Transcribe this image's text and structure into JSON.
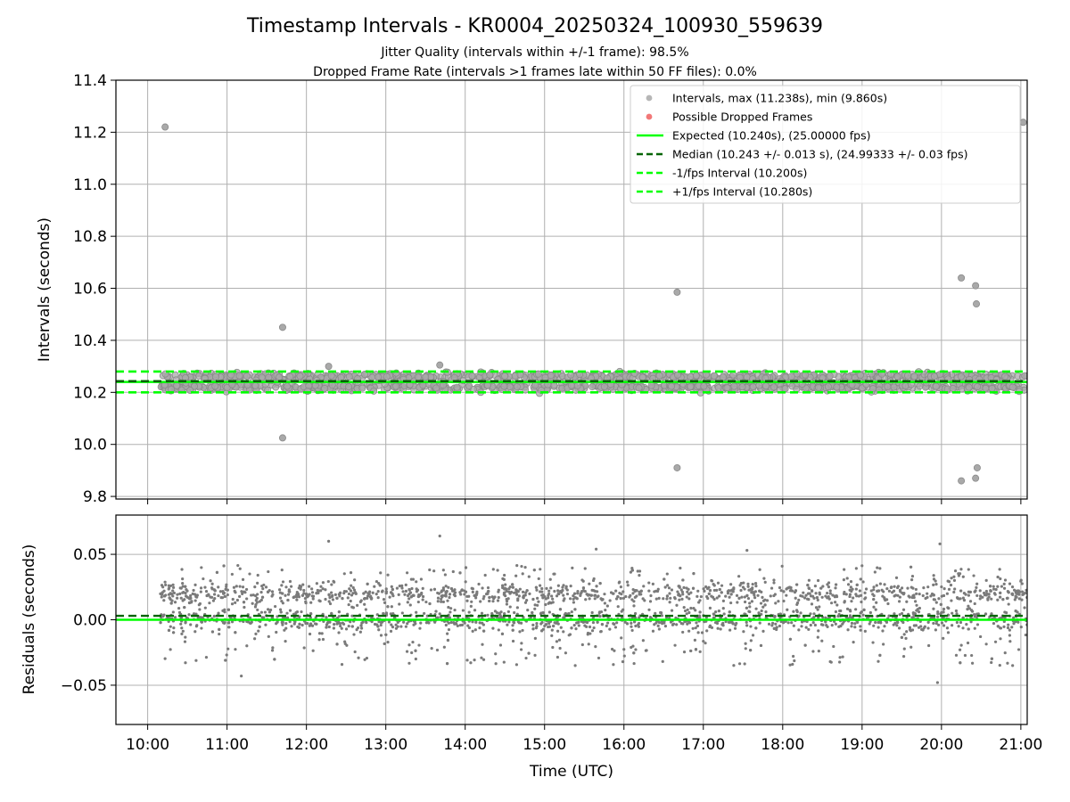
{
  "chart_data": [
    {
      "type": "scatter",
      "title": "Timestamp Intervals - KR0004_20250324_100930_559639",
      "subtitle_lines": [
        "Jitter Quality (intervals within +/-1 frame): 98.5%",
        "Dropped Frame Rate (intervals >1 frames late within 50 FF files): 0.0%"
      ],
      "xlabel": "",
      "ylabel": "Intervals (seconds)",
      "xlim_hours": [
        9.6,
        21.08
      ],
      "ylim": [
        9.79,
        11.4
      ],
      "yticks": [
        9.8,
        10.0,
        10.2,
        10.4,
        10.6,
        10.8,
        11.0,
        11.2,
        11.4
      ],
      "ytick_labels": [
        "9.8",
        "10.0",
        "10.2",
        "10.4",
        "10.6",
        "10.8",
        "11.0",
        "11.2",
        "11.4"
      ],
      "grid": true,
      "legend_position": "top-right",
      "legend": [
        {
          "label": "Intervals, max (11.238s), min (9.860s)",
          "kind": "marker",
          "color": "#a9a9a9"
        },
        {
          "label": "Possible Dropped Frames",
          "kind": "marker",
          "color": "#f06060"
        },
        {
          "label": "Expected (10.240s), (25.00000 fps)",
          "kind": "line",
          "color": "#00ff00",
          "dash": false
        },
        {
          "label": "Median (10.243 +/- 0.013 s), (24.99333 +/- 0.03 fps)",
          "kind": "line",
          "color": "#006400",
          "dash": true
        },
        {
          "label": "-1/fps Interval (10.200s)",
          "kind": "line",
          "color": "#00ff00",
          "dash": true
        },
        {
          "label": "+1/fps Interval (10.280s)",
          "kind": "line",
          "color": "#00ff00",
          "dash": true
        }
      ],
      "reference_lines": {
        "expected": 10.24,
        "median": 10.243,
        "minus_interval": 10.2,
        "plus_interval": 10.28
      },
      "band": {
        "x_start_hours": 10.16,
        "x_end_hours": 21.08,
        "y_low": 10.22,
        "y_high": 10.26,
        "spread": 0.02
      },
      "outliers": [
        {
          "x_hours": 10.22,
          "y": 11.22
        },
        {
          "x_hours": 11.7,
          "y": 10.45
        },
        {
          "x_hours": 11.7,
          "y": 10.025
        },
        {
          "x_hours": 12.28,
          "y": 10.3
        },
        {
          "x_hours": 13.68,
          "y": 10.305
        },
        {
          "x_hours": 16.67,
          "y": 10.585
        },
        {
          "x_hours": 16.67,
          "y": 9.91
        },
        {
          "x_hours": 20.25,
          "y": 10.64
        },
        {
          "x_hours": 20.25,
          "y": 9.86
        },
        {
          "x_hours": 20.43,
          "y": 10.61
        },
        {
          "x_hours": 20.44,
          "y": 10.54
        },
        {
          "x_hours": 20.43,
          "y": 9.87
        },
        {
          "x_hours": 20.45,
          "y": 9.91
        },
        {
          "x_hours": 21.03,
          "y": 11.238
        }
      ],
      "colors": {
        "points": "#a9a9a9",
        "points_edge": "#8a8a8a"
      }
    },
    {
      "type": "scatter",
      "xlabel": "Time (UTC)",
      "ylabel": "Residuals (seconds)",
      "xlim_hours": [
        9.6,
        21.08
      ],
      "ylim": [
        -0.08,
        0.08
      ],
      "yticks": [
        -0.05,
        0.0,
        0.05
      ],
      "ytick_labels": [
        "−0.05",
        "0.00",
        "0.05"
      ],
      "xticks_hours": [
        10,
        11,
        12,
        13,
        14,
        15,
        16,
        17,
        18,
        19,
        20,
        21
      ],
      "xtick_labels": [
        "10:00",
        "11:00",
        "12:00",
        "13:00",
        "14:00",
        "15:00",
        "16:00",
        "17:00",
        "18:00",
        "19:00",
        "20:00",
        "21:00"
      ],
      "grid": true,
      "reference_lines": {
        "zero": 0.0,
        "median": 0.003
      },
      "clusters": {
        "x_start_hours": 10.16,
        "x_end_hours": 21.08,
        "centers": [
          0.0,
          0.02
        ],
        "spread": 0.004,
        "scatter_range": [
          -0.035,
          0.055
        ]
      },
      "outliers": [
        {
          "x_hours": 11.18,
          "y": -0.043
        },
        {
          "x_hours": 12.28,
          "y": 0.06
        },
        {
          "x_hours": 13.68,
          "y": 0.064
        },
        {
          "x_hours": 15.65,
          "y": 0.054
        },
        {
          "x_hours": 17.55,
          "y": 0.053
        },
        {
          "x_hours": 19.98,
          "y": 0.058
        },
        {
          "x_hours": 19.95,
          "y": -0.048
        }
      ],
      "colors": {
        "points": "#7a7a7a",
        "median": "#006400",
        "zero": "#00ff00"
      }
    }
  ]
}
